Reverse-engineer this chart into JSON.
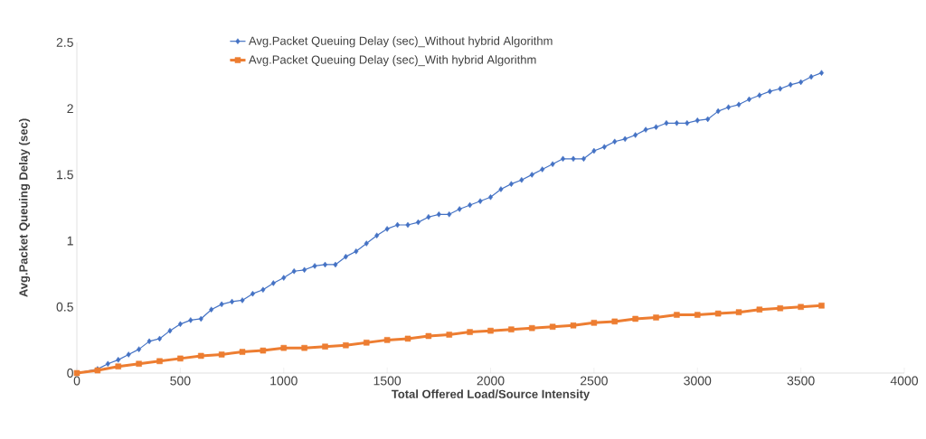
{
  "chart_data": {
    "type": "line",
    "xlabel": "Total Offered Load/Source Intensity",
    "ylabel": "Avg.Packet Queuing Delay (sec)",
    "xlim": [
      0,
      4000
    ],
    "xticks": [
      0,
      500,
      1000,
      1500,
      2000,
      2500,
      3000,
      3500,
      4000
    ],
    "ylim": [
      0,
      2.5
    ],
    "yticks": [
      0,
      0.5,
      1,
      1.5,
      2,
      2.5
    ],
    "grid": false,
    "legend": "top",
    "series": [
      {
        "name": "Avg.Packet Queuing Delay (sec)_Without  hybrid Algorithm",
        "color": "#4472c4",
        "marker": "diamond",
        "x": [
          0,
          100,
          150,
          200,
          250,
          300,
          350,
          400,
          450,
          500,
          550,
          600,
          650,
          700,
          750,
          800,
          850,
          900,
          950,
          1000,
          1050,
          1100,
          1150,
          1200,
          1250,
          1300,
          1350,
          1400,
          1450,
          1500,
          1550,
          1600,
          1650,
          1700,
          1750,
          1800,
          1850,
          1900,
          1950,
          2000,
          2050,
          2100,
          2150,
          2200,
          2250,
          2300,
          2350,
          2400,
          2450,
          2500,
          2550,
          2600,
          2650,
          2700,
          2750,
          2800,
          2850,
          2900,
          2950,
          3000,
          3050,
          3100,
          3150,
          3200,
          3250,
          3300,
          3350,
          3400,
          3450,
          3500,
          3550,
          3600
        ],
        "values": [
          0,
          0.03,
          0.07,
          0.1,
          0.14,
          0.18,
          0.24,
          0.26,
          0.32,
          0.37,
          0.4,
          0.41,
          0.48,
          0.52,
          0.54,
          0.55,
          0.6,
          0.63,
          0.68,
          0.72,
          0.77,
          0.78,
          0.81,
          0.82,
          0.82,
          0.88,
          0.92,
          0.98,
          1.04,
          1.09,
          1.12,
          1.12,
          1.14,
          1.18,
          1.2,
          1.2,
          1.24,
          1.27,
          1.3,
          1.33,
          1.39,
          1.43,
          1.46,
          1.5,
          1.54,
          1.58,
          1.62,
          1.62,
          1.62,
          1.68,
          1.71,
          1.75,
          1.77,
          1.8,
          1.84,
          1.86,
          1.89,
          1.89,
          1.89,
          1.91,
          1.92,
          1.98,
          2.01,
          2.03,
          2.07,
          2.1,
          2.13,
          2.15,
          2.18,
          2.2,
          2.24,
          2.27
        ]
      },
      {
        "name": "Avg.Packet Queuing Delay (sec)_With  hybrid Algorithm",
        "color": "#ed7d31",
        "marker": "square",
        "x": [
          0,
          100,
          200,
          300,
          400,
          500,
          600,
          700,
          800,
          900,
          1000,
          1100,
          1200,
          1300,
          1400,
          1500,
          1600,
          1700,
          1800,
          1900,
          2000,
          2100,
          2200,
          2300,
          2400,
          2500,
          2600,
          2700,
          2800,
          2900,
          3000,
          3100,
          3200,
          3300,
          3400,
          3500,
          3600
        ],
        "values": [
          0,
          0.02,
          0.05,
          0.07,
          0.09,
          0.11,
          0.13,
          0.14,
          0.16,
          0.17,
          0.19,
          0.19,
          0.2,
          0.21,
          0.23,
          0.25,
          0.26,
          0.28,
          0.29,
          0.31,
          0.32,
          0.33,
          0.34,
          0.35,
          0.36,
          0.38,
          0.39,
          0.41,
          0.42,
          0.44,
          0.44,
          0.45,
          0.46,
          0.48,
          0.49,
          0.5,
          0.51
        ]
      }
    ]
  }
}
